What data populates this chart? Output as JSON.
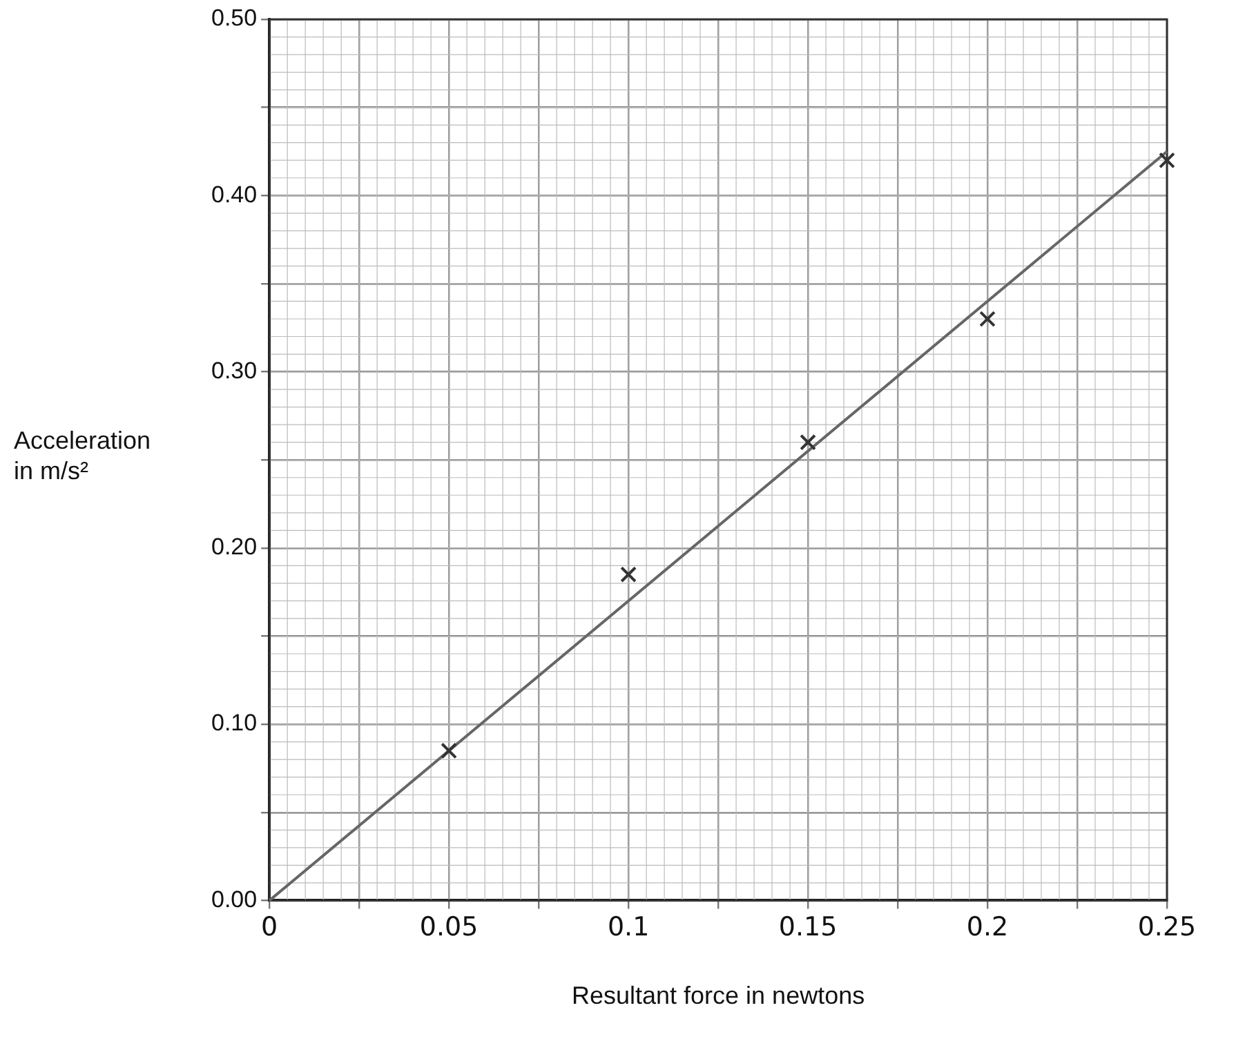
{
  "chart_data": {
    "type": "scatter",
    "xlabel": "Resultant force in newtons",
    "ylabel": "Acceleration in m/s²",
    "xlim": [
      0,
      0.25
    ],
    "ylim": [
      0,
      0.5
    ],
    "xticks": [
      0,
      {
        "value": 0.025,
        "label": null
      },
      0.05,
      {
        "value": 0.075,
        "label": null
      },
      0.1,
      {
        "value": 0.125,
        "label": null
      },
      0.15,
      {
        "value": 0.175,
        "label": null
      },
      0.2,
      {
        "value": 0.225,
        "label": null
      },
      0.25
    ],
    "yticks": [
      {
        "value": 0,
        "label": "0.00"
      },
      {
        "value": 0.05,
        "label": null
      },
      {
        "value": 0.1,
        "label": "0.10"
      },
      {
        "value": 0.15,
        "label": null
      },
      {
        "value": 0.2,
        "label": "0.20"
      },
      {
        "value": 0.25,
        "label": null
      },
      {
        "value": 0.3,
        "label": "0.30"
      },
      {
        "value": 0.35,
        "label": null
      },
      {
        "value": 0.4,
        "label": "0.40"
      },
      {
        "value": 0.45,
        "label": null
      },
      {
        "value": 0.5,
        "label": "0.50"
      }
    ],
    "grid": true,
    "marker": "cross",
    "series": [
      {
        "type": "scatter",
        "color": "#333333",
        "x": [
          0.05,
          0.1,
          0.15,
          0.2,
          0.25
        ],
        "values": [
          0.085,
          0.185,
          0.26,
          0.33,
          0.42
        ]
      },
      {
        "type": "line",
        "color": "#666666",
        "marker": "none",
        "x": [
          0,
          0.25
        ],
        "values": [
          0,
          0.425
        ]
      }
    ]
  }
}
